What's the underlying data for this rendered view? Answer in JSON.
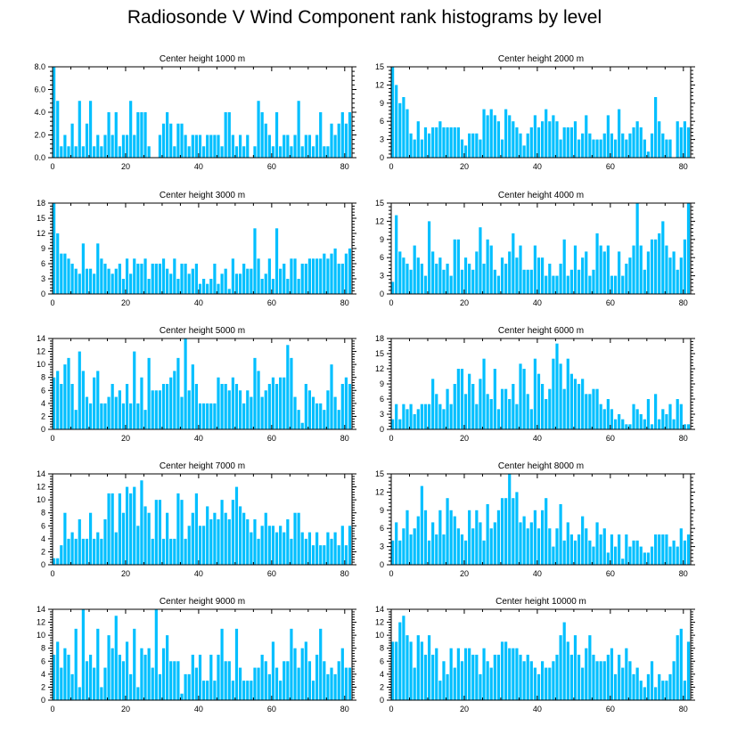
{
  "figure": {
    "title": "Radiosonde V Wind Component rank histograms by level",
    "bar_color": "#00BFFF",
    "axis_color": "#000000"
  },
  "chart_data": [
    {
      "type": "bar",
      "title": "Center height 1000 m",
      "xlim": [
        0,
        82
      ],
      "xticks": [
        0,
        20,
        40,
        60,
        80
      ],
      "ylim": [
        0,
        8
      ],
      "yticks": [
        0,
        2,
        4,
        6,
        8
      ],
      "ytick_labels": [
        "0.0",
        "2.0",
        "4.0",
        "6.0",
        "8.0"
      ],
      "values": [
        8,
        5,
        1,
        2,
        1,
        3,
        1,
        5,
        1,
        3,
        5,
        1,
        2,
        1,
        2,
        4,
        2,
        4,
        1,
        2,
        2,
        5,
        2,
        4,
        4,
        4,
        1,
        0,
        0,
        2,
        3,
        4,
        3,
        1,
        3,
        3,
        2,
        1,
        2,
        2,
        2,
        1,
        2,
        2,
        2,
        2,
        1,
        4,
        4,
        2,
        1,
        2,
        1,
        2,
        0,
        1,
        5,
        4,
        3,
        2,
        1,
        4,
        1,
        2,
        2,
        1,
        2,
        5,
        1,
        2,
        2,
        1,
        2,
        4,
        1,
        1,
        3,
        2,
        3,
        4,
        3,
        4
      ]
    },
    {
      "type": "bar",
      "title": "Center height 2000 m",
      "xlim": [
        0,
        82
      ],
      "xticks": [
        0,
        20,
        40,
        60,
        80
      ],
      "ylim": [
        0,
        15
      ],
      "yticks": [
        0,
        3,
        6,
        9,
        12,
        15
      ],
      "ytick_labels": [
        "0",
        "3",
        "6",
        "9",
        "12",
        "15"
      ],
      "values": [
        15,
        12,
        9,
        10,
        8,
        4,
        3,
        6,
        3,
        5,
        4,
        5,
        5,
        6,
        5,
        5,
        5,
        5,
        5,
        3,
        2,
        4,
        4,
        4,
        3,
        8,
        7,
        8,
        7,
        6,
        3,
        8,
        7,
        6,
        5,
        4,
        2,
        4,
        5,
        7,
        5,
        6,
        8,
        6,
        7,
        6,
        3,
        5,
        5,
        5,
        6,
        3,
        4,
        7,
        4,
        3,
        3,
        3,
        4,
        7,
        4,
        3,
        8,
        4,
        3,
        4,
        5,
        6,
        5,
        3,
        1,
        4,
        10,
        6,
        4,
        3,
        3,
        0,
        6,
        5,
        6,
        5
      ]
    },
    {
      "type": "bar",
      "title": "Center height 3000 m",
      "xlim": [
        0,
        82
      ],
      "xticks": [
        0,
        20,
        40,
        60,
        80
      ],
      "ylim": [
        0,
        18
      ],
      "yticks": [
        0,
        3,
        6,
        9,
        12,
        15,
        18
      ],
      "ytick_labels": [
        "0",
        "3",
        "6",
        "9",
        "12",
        "15",
        "18"
      ],
      "values": [
        18,
        12,
        8,
        8,
        7,
        6,
        5,
        4,
        10,
        5,
        5,
        4,
        10,
        7,
        6,
        5,
        4,
        5,
        6,
        3,
        7,
        4,
        7,
        6,
        6,
        7,
        3,
        6,
        6,
        6,
        7,
        5,
        4,
        7,
        3,
        6,
        6,
        4,
        5,
        6,
        2,
        3,
        2,
        3,
        6,
        2,
        4,
        5,
        1,
        7,
        4,
        4,
        6,
        5,
        5,
        13,
        7,
        3,
        4,
        7,
        3,
        13,
        5,
        6,
        3,
        7,
        7,
        3,
        6,
        6,
        7,
        7,
        7,
        7,
        8,
        7,
        8,
        9,
        6,
        6,
        8,
        9
      ]
    },
    {
      "type": "bar",
      "title": "Center height 4000 m",
      "xlim": [
        0,
        82
      ],
      "xticks": [
        0,
        20,
        40,
        60,
        80
      ],
      "ylim": [
        0,
        15
      ],
      "yticks": [
        0,
        3,
        6,
        9,
        12,
        15
      ],
      "ytick_labels": [
        "0",
        "3",
        "6",
        "9",
        "12",
        "15"
      ],
      "values": [
        2,
        13,
        7,
        6,
        5,
        4,
        8,
        6,
        5,
        3,
        12,
        7,
        5,
        6,
        4,
        5,
        3,
        9,
        9,
        4,
        6,
        5,
        4,
        7,
        11,
        5,
        9,
        8,
        4,
        3,
        6,
        5,
        7,
        10,
        6,
        8,
        4,
        4,
        4,
        8,
        6,
        6,
        3,
        5,
        3,
        3,
        5,
        9,
        3,
        4,
        8,
        4,
        6,
        7,
        3,
        4,
        10,
        8,
        7,
        8,
        3,
        3,
        7,
        3,
        5,
        6,
        8,
        15,
        8,
        4,
        7,
        9,
        9,
        10,
        12,
        8,
        6,
        7,
        4,
        6,
        9,
        15
      ]
    },
    {
      "type": "bar",
      "title": "Center height 5000 m",
      "xlim": [
        0,
        82
      ],
      "xticks": [
        0,
        20,
        40,
        60,
        80
      ],
      "ylim": [
        0,
        14
      ],
      "yticks": [
        0,
        2,
        4,
        6,
        8,
        10,
        12,
        14
      ],
      "ytick_labels": [
        "0",
        "2",
        "4",
        "6",
        "8",
        "10",
        "12",
        "14"
      ],
      "values": [
        8,
        9,
        7,
        10,
        11,
        7,
        3,
        12,
        9,
        5,
        4,
        8,
        9,
        4,
        4,
        5,
        7,
        5,
        6,
        4,
        7,
        4,
        12,
        4,
        8,
        3,
        11,
        6,
        6,
        6,
        7,
        7,
        8,
        9,
        11,
        5,
        14,
        6,
        10,
        7,
        4,
        4,
        4,
        4,
        4,
        8,
        7,
        7,
        6,
        8,
        7,
        6,
        4,
        6,
        5,
        11,
        9,
        5,
        6,
        7,
        8,
        7,
        8,
        8,
        13,
        11,
        5,
        3,
        1,
        7,
        6,
        5,
        4,
        4,
        3,
        6,
        10,
        5,
        3,
        7,
        8,
        7
      ]
    },
    {
      "type": "bar",
      "title": "Center height 6000 m",
      "xlim": [
        0,
        82
      ],
      "xticks": [
        0,
        20,
        40,
        60,
        80
      ],
      "ylim": [
        0,
        18
      ],
      "yticks": [
        0,
        3,
        6,
        9,
        12,
        15,
        18
      ],
      "ytick_labels": [
        "0",
        "3",
        "6",
        "9",
        "12",
        "15",
        "18"
      ],
      "values": [
        2,
        5,
        2,
        5,
        4,
        5,
        3,
        4,
        5,
        5,
        5,
        10,
        7,
        5,
        4,
        8,
        5,
        9,
        12,
        12,
        7,
        11,
        9,
        5,
        10,
        14,
        7,
        6,
        12,
        4,
        8,
        8,
        6,
        9,
        5,
        13,
        12,
        7,
        4,
        14,
        11,
        9,
        6,
        8,
        14,
        17,
        13,
        8,
        14,
        11,
        10,
        9,
        10,
        7,
        7,
        8,
        8,
        5,
        4,
        6,
        4,
        2,
        3,
        2,
        1,
        1,
        5,
        4,
        3,
        2,
        6,
        1,
        7,
        2,
        4,
        3,
        5,
        2,
        6,
        5,
        1,
        1
      ]
    },
    {
      "type": "bar",
      "title": "Center height 7000 m",
      "xlim": [
        0,
        82
      ],
      "xticks": [
        0,
        20,
        40,
        60,
        80
      ],
      "ylim": [
        0,
        14
      ],
      "yticks": [
        0,
        2,
        4,
        6,
        8,
        10,
        12,
        14
      ],
      "ytick_labels": [
        "0",
        "2",
        "4",
        "6",
        "8",
        "10",
        "12",
        "14"
      ],
      "values": [
        1,
        1,
        3,
        8,
        4,
        5,
        4,
        7,
        4,
        4,
        8,
        4,
        5,
        4,
        7,
        11,
        11,
        5,
        11,
        8,
        12,
        11,
        12,
        6,
        13,
        9,
        8,
        4,
        10,
        10,
        4,
        8,
        4,
        4,
        11,
        10,
        4,
        6,
        8,
        11,
        6,
        6,
        9,
        7,
        8,
        7,
        10,
        8,
        7,
        10,
        12,
        9,
        8,
        7,
        5,
        7,
        4,
        6,
        8,
        6,
        6,
        5,
        6,
        5,
        7,
        4,
        8,
        8,
        5,
        4,
        5,
        3,
        5,
        3,
        3,
        5,
        4,
        5,
        3,
        6,
        3,
        6
      ]
    },
    {
      "type": "bar",
      "title": "Center height 8000 m",
      "xlim": [
        0,
        82
      ],
      "xticks": [
        0,
        20,
        40,
        60,
        80
      ],
      "ylim": [
        0,
        15
      ],
      "yticks": [
        0,
        3,
        6,
        9,
        12,
        15
      ],
      "ytick_labels": [
        "0",
        "3",
        "6",
        "9",
        "12",
        "15"
      ],
      "values": [
        4,
        7,
        4,
        6,
        9,
        5,
        6,
        8,
        13,
        9,
        4,
        7,
        5,
        9,
        5,
        11,
        9,
        8,
        6,
        5,
        4,
        9,
        6,
        9,
        7,
        4,
        10,
        6,
        7,
        9,
        11,
        11,
        15,
        11,
        12,
        7,
        8,
        6,
        7,
        9,
        6,
        9,
        11,
        6,
        3,
        6,
        10,
        4,
        7,
        5,
        4,
        5,
        8,
        6,
        4,
        3,
        7,
        5,
        6,
        2,
        5,
        3,
        5,
        1,
        5,
        3,
        4,
        4,
        3,
        2,
        2,
        3,
        5,
        5,
        5,
        5,
        3,
        4,
        3,
        6,
        4,
        5
      ]
    },
    {
      "type": "bar",
      "title": "Center height 9000 m",
      "xlim": [
        0,
        82
      ],
      "xticks": [
        0,
        20,
        40,
        60,
        80
      ],
      "ylim": [
        0,
        14
      ],
      "yticks": [
        0,
        2,
        4,
        6,
        8,
        10,
        12,
        14
      ],
      "ytick_labels": [
        "0",
        "2",
        "4",
        "6",
        "8",
        "10",
        "12",
        "14"
      ],
      "values": [
        7,
        9,
        5,
        8,
        7,
        4,
        11,
        2,
        14,
        6,
        7,
        5,
        11,
        2,
        5,
        10,
        8,
        13,
        7,
        6,
        9,
        4,
        11,
        2,
        8,
        7,
        8,
        5,
        14,
        4,
        8,
        10,
        6,
        6,
        6,
        1,
        4,
        4,
        7,
        5,
        7,
        3,
        3,
        7,
        3,
        7,
        11,
        6,
        6,
        3,
        11,
        5,
        3,
        3,
        3,
        5,
        5,
        7,
        6,
        4,
        9,
        5,
        3,
        6,
        6,
        11,
        8,
        5,
        8,
        9,
        6,
        3,
        7,
        11,
        6,
        4,
        5,
        4,
        6,
        8,
        5,
        5
      ]
    },
    {
      "type": "bar",
      "title": "Center height 10000 m",
      "xlim": [
        0,
        82
      ],
      "xticks": [
        0,
        20,
        40,
        60,
        80
      ],
      "ylim": [
        0,
        14
      ],
      "yticks": [
        0,
        2,
        4,
        6,
        8,
        10,
        12,
        14
      ],
      "ytick_labels": [
        "0",
        "2",
        "4",
        "6",
        "8",
        "10",
        "12",
        "14"
      ],
      "values": [
        9,
        9,
        12,
        13,
        10,
        9,
        5,
        10,
        9,
        7,
        10,
        7,
        8,
        3,
        6,
        4,
        8,
        5,
        8,
        6,
        8,
        8,
        7,
        7,
        4,
        8,
        6,
        5,
        7,
        7,
        9,
        9,
        8,
        8,
        8,
        7,
        6,
        7,
        6,
        5,
        4,
        6,
        5,
        5,
        6,
        7,
        10,
        12,
        9,
        7,
        10,
        7,
        5,
        8,
        10,
        7,
        6,
        6,
        6,
        7,
        8,
        4,
        7,
        5,
        8,
        6,
        4,
        5,
        3,
        2,
        4,
        6,
        2,
        4,
        3,
        3,
        4,
        6,
        10,
        11,
        3,
        9
      ]
    }
  ]
}
